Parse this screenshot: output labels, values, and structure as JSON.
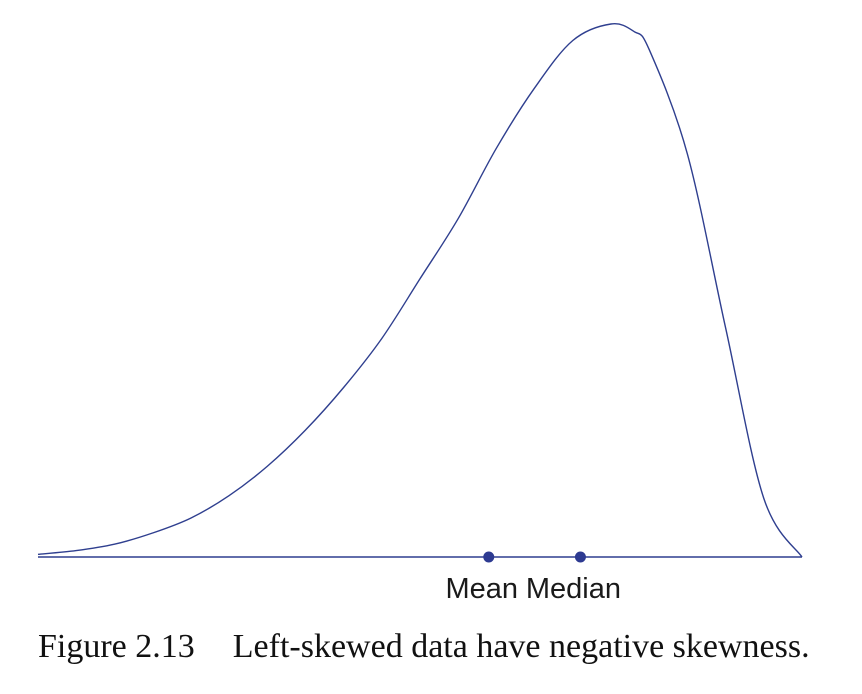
{
  "colors": {
    "curve": "#2f3f8f",
    "baseline": "#2f3f8f",
    "marker": "#2d3a91",
    "text": "#1a1a1a"
  },
  "caption": {
    "number": "Figure 2.13",
    "text": "Left-skewed data have negative skewness."
  },
  "chart_data": {
    "type": "line",
    "description_kind": "density-curve",
    "x": [
      0.0,
      0.05,
      0.1,
      0.15,
      0.2,
      0.25,
      0.3,
      0.35,
      0.4,
      0.45,
      0.5,
      0.55,
      0.6,
      0.65,
      0.7,
      0.75,
      0.78,
      0.8,
      0.85,
      0.9,
      0.95,
      1.0
    ],
    "series": [
      {
        "values": [
          0.005,
          0.012,
          0.024,
          0.045,
          0.073,
          0.115,
          0.17,
          0.238,
          0.318,
          0.41,
          0.522,
          0.635,
          0.767,
          0.88,
          0.969,
          1.0,
          0.986,
          0.952,
          0.756,
          0.43,
          0.11,
          0.0
        ]
      }
    ],
    "markers": [
      {
        "label": "Mean",
        "x": 0.59
      },
      {
        "label": "Median",
        "x": 0.71
      }
    ],
    "xlim": [
      0,
      1
    ],
    "ylim": [
      0,
      1
    ],
    "axes_visible": false,
    "grid": false,
    "legend": "none"
  }
}
